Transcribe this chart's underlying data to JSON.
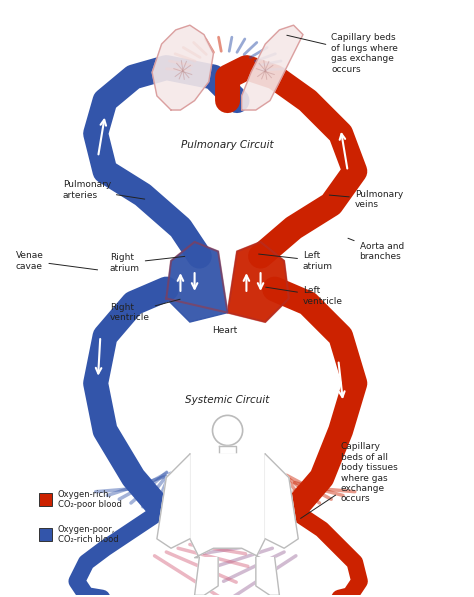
{
  "background_color": "#ffffff",
  "red_color": "#cc2200",
  "blue_color": "#3355aa",
  "light_red": "#e8a090",
  "light_blue": "#a0b8e0",
  "pink_color": "#d4607a",
  "purple_color": "#9b6a9b",
  "text_color": "#222222",
  "labels": {
    "pulmonary_circuit": "Pulmonary Circuit",
    "systemic_circuit": "Systemic Circuit",
    "capillary_lungs": "Capillary beds\nof lungs where\ngas exchange\noccurs",
    "pulmonary_arteries": "Pulmonary\narteries",
    "pulmonary_veins": "Pulmonary\nveins",
    "aorta": "Aorta and\nbranches",
    "venae_cavae": "Venae\ncavae",
    "left_atrium": "Left\natrium",
    "left_ventricle": "Left\nventricle",
    "right_atrium": "Right\natrium",
    "right_ventricle": "Right\nventricle",
    "heart": "Heart",
    "capillary_body": "Capillary\nbeds of all\nbody tissues\nwhere gas\nexchange\noccurs",
    "legend_red": "Oxygen-rich,\nCO₂-poor blood",
    "legend_blue": "Oxygen-poor,\nCO₂-rich blood"
  },
  "figsize": [
    4.74,
    5.97
  ],
  "dpi": 100
}
